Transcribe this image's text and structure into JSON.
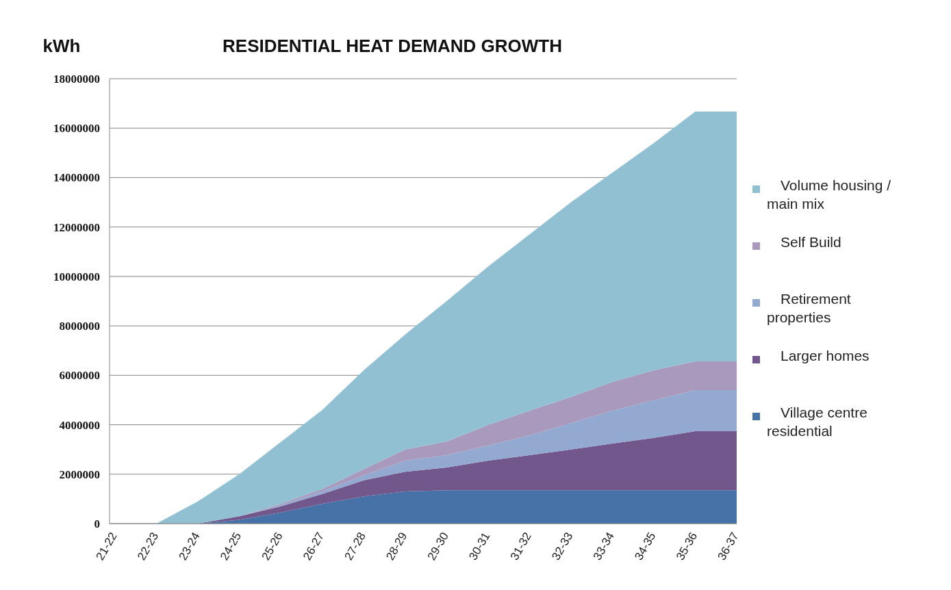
{
  "chart_data": {
    "type": "area",
    "title": "RESIDENTIAL HEAT DEMAND GROWTH",
    "ylabel": "kWh",
    "stacked": true,
    "grid": "y",
    "legend": "right",
    "categories": [
      "21-22",
      "22-23",
      "23-24",
      "24-25",
      "25-26",
      "26-27",
      "27-28",
      "28-29",
      "29-30",
      "30-31",
      "31-32",
      "32-33",
      "33-34",
      "34-35",
      "35-36",
      "36-37"
    ],
    "ylim": [
      0,
      18000000
    ],
    "yticks": [
      0,
      2000000,
      4000000,
      6000000,
      8000000,
      10000000,
      12000000,
      14000000,
      16000000,
      18000000
    ],
    "series": [
      {
        "name": "Village centre residential",
        "color": "#4672a8",
        "values": [
          0,
          0,
          0,
          150000,
          450000,
          800000,
          1100000,
          1300000,
          1350000,
          1350000,
          1350000,
          1350000,
          1350000,
          1350000,
          1350000,
          1350000
        ]
      },
      {
        "name": "Larger homes",
        "color": "#72578c",
        "values": [
          0,
          0,
          0,
          150000,
          250000,
          400000,
          650000,
          800000,
          920000,
          1200000,
          1420000,
          1650000,
          1890000,
          2120000,
          2390000,
          2390000
        ]
      },
      {
        "name": "Retirement properties",
        "color": "#93a9d0",
        "values": [
          0,
          0,
          0,
          0,
          50000,
          100000,
          200000,
          450000,
          500000,
          610000,
          800000,
          1070000,
          1330000,
          1520000,
          1660000,
          1660000
        ]
      },
      {
        "name": "Self Build",
        "color": "#a899bd",
        "values": [
          0,
          0,
          0,
          0,
          50000,
          100000,
          250000,
          450000,
          550000,
          830000,
          1000000,
          1050000,
          1160000,
          1210000,
          1160000,
          1160000
        ]
      },
      {
        "name": "Volume housing / main mix",
        "color": "#92c0d3",
        "values": [
          0,
          0,
          900000,
          1700000,
          2500000,
          3200000,
          4000000,
          4650000,
          5680000,
          6410000,
          7130000,
          7880000,
          8470000,
          9200000,
          10110000,
          10110000
        ]
      }
    ]
  }
}
